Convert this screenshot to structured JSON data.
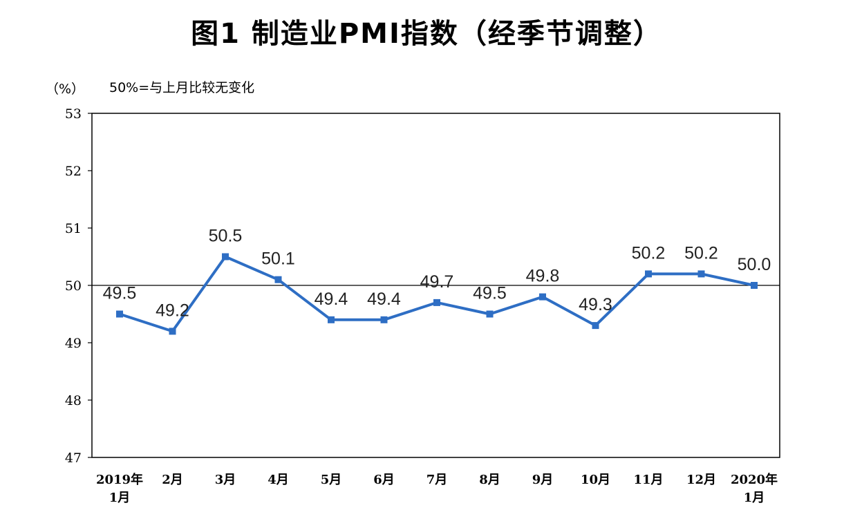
{
  "header": {
    "title": "图1 制造业PMI指数（经季节调整）",
    "unit": "（%）",
    "note": "50%=与上月比较无变化"
  },
  "chart_data": {
    "type": "line",
    "title": "图1 制造业PMI指数（经季节调整）",
    "xlabel": "",
    "ylabel": "（%）",
    "annotation": "50%=与上月比较无变化",
    "categories": [
      [
        "2019年",
        "1月"
      ],
      [
        "2月"
      ],
      [
        "3月"
      ],
      [
        "4月"
      ],
      [
        "5月"
      ],
      [
        "6月"
      ],
      [
        "7月"
      ],
      [
        "8月"
      ],
      [
        "9月"
      ],
      [
        "10月"
      ],
      [
        "11月"
      ],
      [
        "12月"
      ],
      [
        "2020年",
        "1月"
      ]
    ],
    "series": [
      {
        "values": [
          49.5,
          49.2,
          50.5,
          50.1,
          49.4,
          49.4,
          49.7,
          49.5,
          49.8,
          49.3,
          50.2,
          50.2,
          50.0
        ],
        "labels": [
          "49.5",
          "49.2",
          "50.5",
          "50.1",
          "49.4",
          "49.4",
          "49.7",
          "49.5",
          "49.8",
          "49.3",
          "50.2",
          "50.2",
          "50.0"
        ],
        "color": "#2e6ec4"
      }
    ],
    "ylim": [
      47,
      53
    ],
    "yticks": [
      "47",
      "48",
      "49",
      "50",
      "51",
      "52",
      "53"
    ],
    "reference_line": 50,
    "grid": false,
    "legend": "none"
  }
}
